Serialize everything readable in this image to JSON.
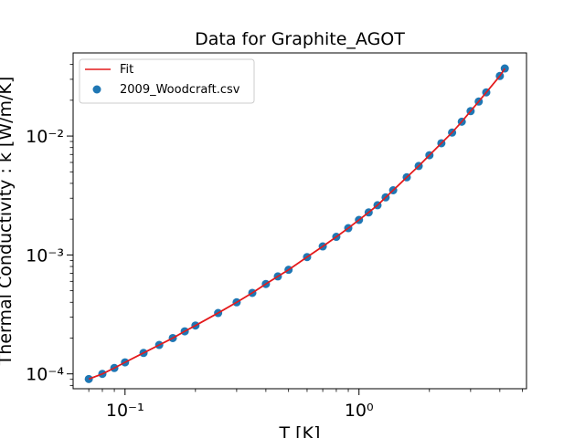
{
  "chart_data": {
    "type": "scatter",
    "title": "Data for Graphite_AGOT",
    "xlabel": "T [K]",
    "ylabel": "Thermal Conductivity : k [W/m/K]",
    "xscale": "log",
    "yscale": "log",
    "xlim": [
      0.06,
      5.2
    ],
    "ylim": [
      7.5e-05,
      0.05
    ],
    "x_ticks": [
      {
        "value": 0.1,
        "label": "10⁻¹"
      },
      {
        "value": 1,
        "label": "10⁰"
      }
    ],
    "y_ticks": [
      {
        "value": 0.0001,
        "label": "10⁻⁴"
      },
      {
        "value": 0.001,
        "label": "10⁻³"
      },
      {
        "value": 0.01,
        "label": "10⁻²"
      }
    ],
    "grid": false,
    "legend_position": "upper-left",
    "legend": [
      "Fit",
      "2009_Woodcraft.csv"
    ],
    "series": [
      {
        "name": "Fit",
        "kind": "line",
        "color": "#e41a1c",
        "x": [
          0.07,
          0.08,
          0.09,
          0.1,
          0.12,
          0.14,
          0.16,
          0.18,
          0.2,
          0.25,
          0.3,
          0.35,
          0.4,
          0.45,
          0.5,
          0.6,
          0.7,
          0.8,
          0.9,
          1.0,
          1.1,
          1.2,
          1.3,
          1.4,
          1.6,
          1.8,
          2.0,
          2.25,
          2.5,
          2.75,
          3.0,
          3.25,
          3.5,
          4.0,
          4.2
        ],
        "y": [
          9.05e-05,
          0.0001,
          0.000112,
          0.000125,
          0.00015,
          0.000175,
          0.0002,
          0.000228,
          0.000255,
          0.000325,
          0.0004,
          0.00048,
          0.00057,
          0.00066,
          0.00075,
          0.00096,
          0.00118,
          0.00142,
          0.00168,
          0.00197,
          0.00228,
          0.00262,
          0.00305,
          0.0035,
          0.0045,
          0.0056,
          0.0069,
          0.0087,
          0.0107,
          0.0132,
          0.0162,
          0.0195,
          0.0233,
          0.032,
          0.037
        ]
      },
      {
        "name": "2009_Woodcraft.csv",
        "kind": "scatter",
        "color": "#1f77b4",
        "x": [
          0.07,
          0.08,
          0.09,
          0.1,
          0.12,
          0.14,
          0.16,
          0.18,
          0.2,
          0.25,
          0.3,
          0.35,
          0.4,
          0.45,
          0.5,
          0.6,
          0.7,
          0.8,
          0.9,
          1.0,
          1.1,
          1.2,
          1.3,
          1.4,
          1.6,
          1.8,
          2.0,
          2.25,
          2.5,
          2.75,
          3.0,
          3.25,
          3.5,
          4.0,
          4.2
        ],
        "y": [
          9.05e-05,
          0.0001,
          0.000112,
          0.000125,
          0.00015,
          0.000175,
          0.0002,
          0.000228,
          0.000255,
          0.000325,
          0.0004,
          0.00048,
          0.00057,
          0.00066,
          0.00075,
          0.00096,
          0.00118,
          0.00142,
          0.00168,
          0.00197,
          0.00228,
          0.00262,
          0.00305,
          0.0035,
          0.0045,
          0.0056,
          0.0069,
          0.0087,
          0.0107,
          0.0132,
          0.0162,
          0.0195,
          0.0233,
          0.032,
          0.037
        ]
      }
    ]
  }
}
